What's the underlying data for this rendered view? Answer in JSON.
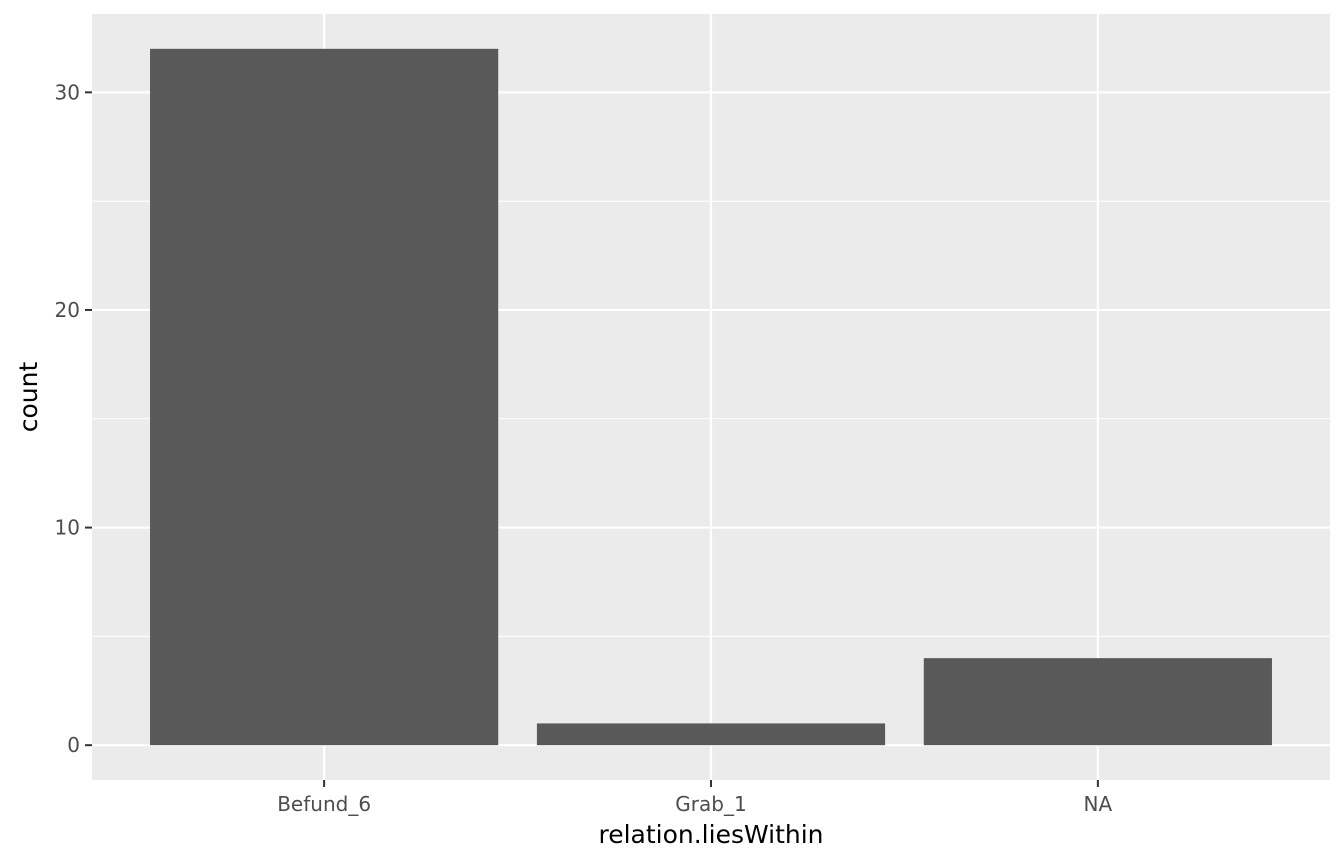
{
  "chart_data": {
    "type": "bar",
    "categories": [
      "Befund_6",
      "Grab_1",
      "NA"
    ],
    "values": [
      32,
      1,
      4
    ],
    "title": "",
    "xlabel": "relation.liesWithin",
    "ylabel": "count",
    "ylim": [
      -1.6,
      33.6
    ],
    "yticks": [
      0,
      10,
      20,
      30
    ],
    "yminor": [
      5,
      15,
      25
    ],
    "grid": true,
    "colors": {
      "panel": "#ebebeb",
      "grid": "#ffffff",
      "bar": "#595959",
      "tick": "#333333"
    }
  }
}
